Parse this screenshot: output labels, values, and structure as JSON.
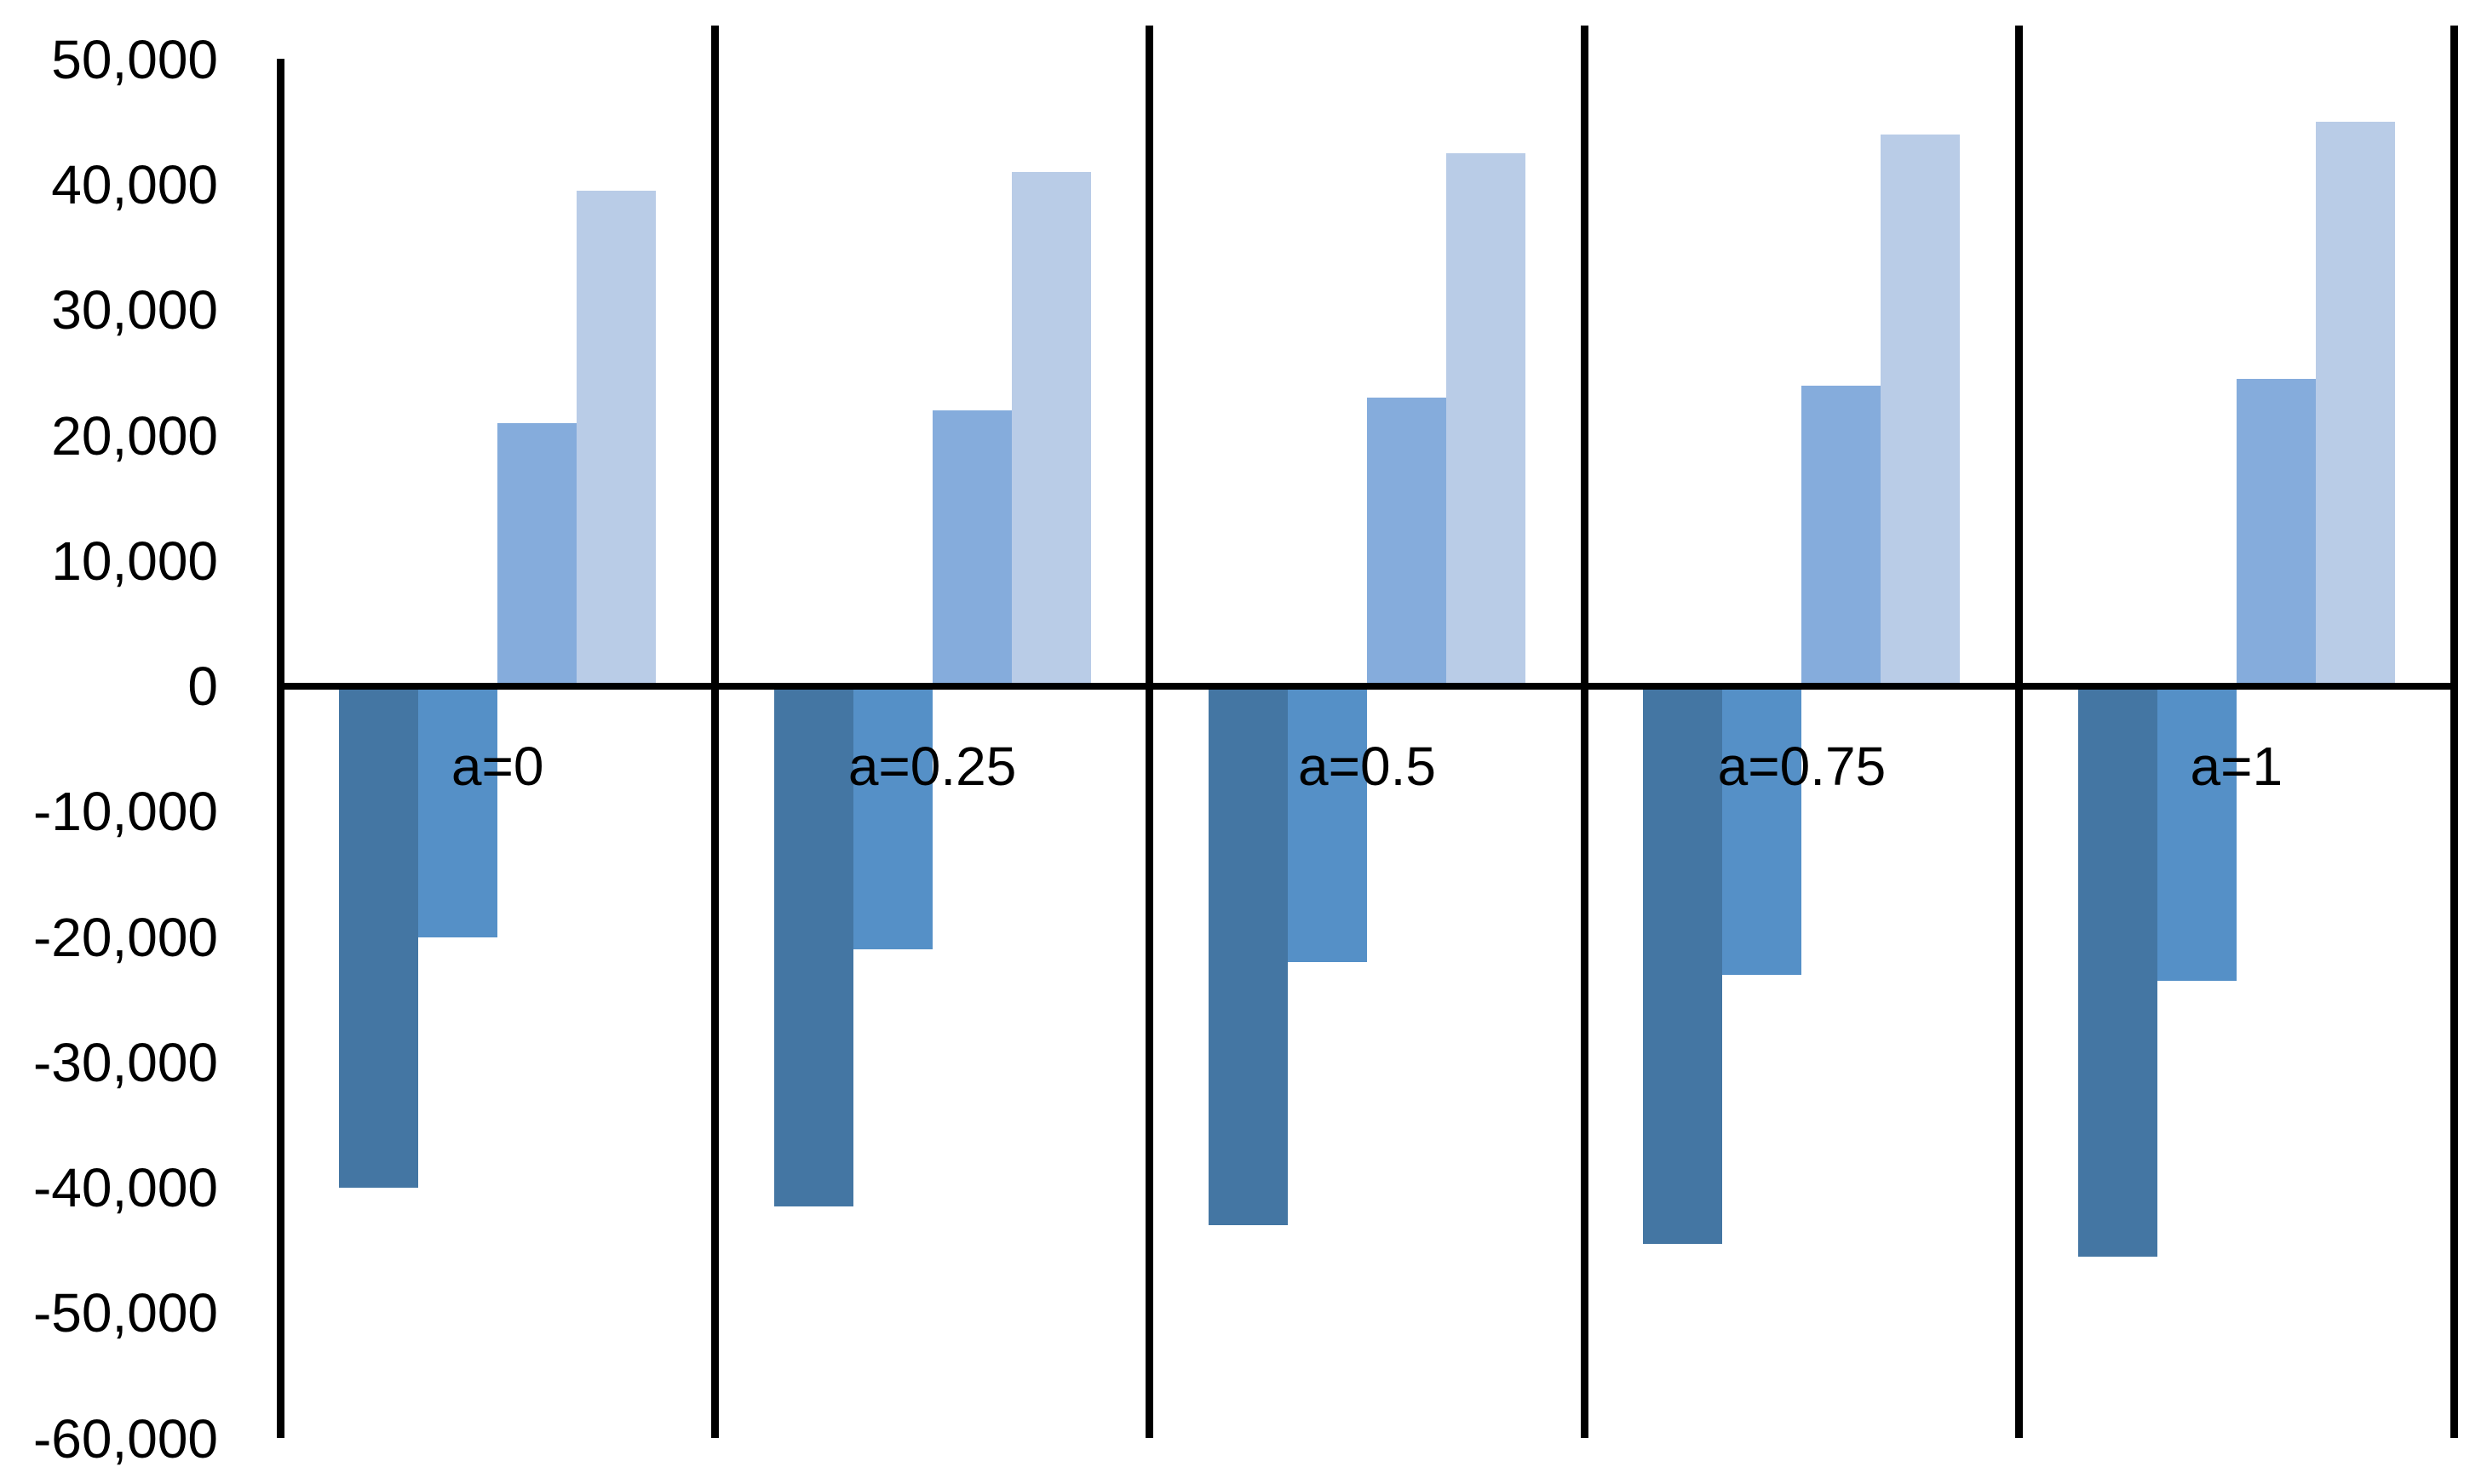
{
  "chart_data": {
    "type": "bar",
    "title": "",
    "categories": [
      "a=0",
      "a=0.25",
      "a=0.5",
      "a=0.75",
      "a=1"
    ],
    "series": [
      {
        "color": "#4476A3",
        "values": [
          -40000,
          -41500,
          -43000,
          -44500,
          -45500
        ]
      },
      {
        "color": "#5590C7",
        "values": [
          -20000,
          -21000,
          -22000,
          -23000,
          -23500
        ]
      },
      {
        "color": "#85ACDC",
        "values": [
          21000,
          22000,
          23000,
          24000,
          24500
        ]
      },
      {
        "color": "#B9CCE7",
        "values": [
          39500,
          41000,
          42500,
          44000,
          45000
        ]
      }
    ],
    "ylim": [
      -60000,
      50000
    ],
    "y_tick_step": 10000,
    "y_tick_labels": [
      "50,000",
      "40,000",
      "30,000",
      "20,000",
      "10,000",
      "0",
      "-10,000",
      "-20,000",
      "-30,000",
      "-40,000",
      "-50,000",
      "-60,000"
    ],
    "grid": false,
    "legend": "none",
    "axis_color": "#000000",
    "background": "#FFFFFF"
  }
}
